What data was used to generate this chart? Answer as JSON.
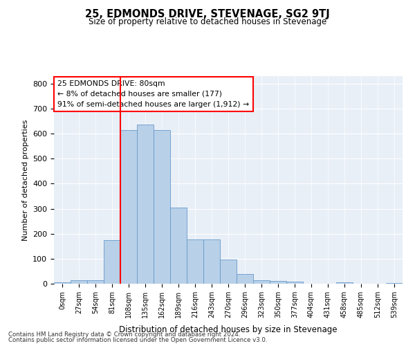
{
  "title": "25, EDMONDS DRIVE, STEVENAGE, SG2 9TJ",
  "subtitle": "Size of property relative to detached houses in Stevenage",
  "xlabel": "Distribution of detached houses by size in Stevenage",
  "ylabel": "Number of detached properties",
  "categories": [
    "0sqm",
    "27sqm",
    "54sqm",
    "81sqm",
    "108sqm",
    "135sqm",
    "162sqm",
    "189sqm",
    "216sqm",
    "243sqm",
    "270sqm",
    "296sqm",
    "323sqm",
    "350sqm",
    "377sqm",
    "404sqm",
    "431sqm",
    "458sqm",
    "485sqm",
    "512sqm",
    "539sqm"
  ],
  "values": [
    5,
    13,
    15,
    175,
    615,
    635,
    615,
    305,
    178,
    178,
    98,
    40,
    14,
    12,
    8,
    0,
    0,
    5,
    0,
    0,
    3
  ],
  "bar_color": "#b8d0e8",
  "bar_edge_color": "#6699cc",
  "red_line_x": 3.5,
  "ylim": [
    0,
    830
  ],
  "yticks": [
    0,
    100,
    200,
    300,
    400,
    500,
    600,
    700,
    800
  ],
  "bg_color": "#e8eff7",
  "annotation_text_line1": "25 EDMONDS DRIVE: 80sqm",
  "annotation_text_line2": "← 8% of detached houses are smaller (177)",
  "annotation_text_line3": "91% of semi-detached houses are larger (1,912) →",
  "footer_line1": "Contains HM Land Registry data © Crown copyright and database right 2024.",
  "footer_line2": "Contains public sector information licensed under the Open Government Licence v3.0."
}
